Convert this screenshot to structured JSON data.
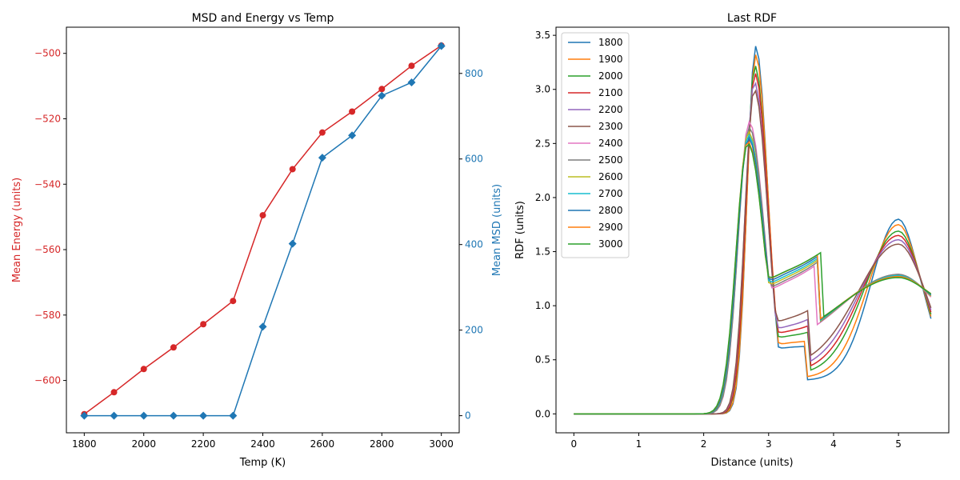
{
  "colors": {
    "energy": "#d62728",
    "msd": "#1f77b4",
    "axis": "#000000"
  },
  "chart_data": [
    {
      "type": "line",
      "title": "MSD and Energy vs Temp",
      "xlabel": "Temp (K)",
      "xlim": [
        1740,
        3060
      ],
      "xticks": [
        1800,
        2000,
        2200,
        2400,
        2600,
        2800,
        3000
      ],
      "x": [
        1800,
        1900,
        2000,
        2100,
        2200,
        2300,
        2400,
        2500,
        2600,
        2700,
        2800,
        2900,
        3000
      ],
      "left_axis": {
        "label": "Mean Energy (units)",
        "ylim": [
          -616,
          -492
        ],
        "ticks": [
          -600,
          -580,
          -560,
          -540,
          -520,
          -500
        ],
        "tick_labels": [
          "−600",
          "−580",
          "−560",
          "−540",
          "−520",
          "−500"
        ]
      },
      "right_axis": {
        "label": "Mean MSD (units)",
        "ylim": [
          -40,
          908
        ],
        "ticks": [
          0,
          200,
          400,
          600,
          800
        ],
        "tick_labels": [
          "0",
          "200",
          "400",
          "600",
          "800"
        ]
      },
      "series": [
        {
          "axis": "left",
          "marker": "circle",
          "color": "#d62728",
          "values": [
            -610.3,
            -603.6,
            -596.5,
            -589.9,
            -582.8,
            -575.7,
            -549.5,
            -535.4,
            -524.2,
            -517.8,
            -510.9,
            -503.8,
            -497.6
          ]
        },
        {
          "axis": "right",
          "marker": "diamond",
          "color": "#1f77b4",
          "values": [
            0,
            0,
            0,
            0,
            0,
            0,
            208,
            402,
            603,
            655,
            748,
            779,
            864
          ]
        }
      ]
    },
    {
      "type": "line",
      "title": "Last RDF",
      "xlabel": "Distance (units)",
      "ylabel": "RDF (units)",
      "xlim": [
        -0.275,
        5.775
      ],
      "ylim": [
        -0.175,
        3.575
      ],
      "xticks": [
        0,
        1,
        2,
        3,
        4,
        5
      ],
      "yticks": [
        0.0,
        0.5,
        1.0,
        1.5,
        2.0,
        2.5,
        3.0,
        3.5
      ],
      "ytick_labels": [
        "0.0",
        "0.5",
        "1.0",
        "1.5",
        "2.0",
        "2.5",
        "3.0",
        "3.5"
      ],
      "legend_position": "top-left",
      "x_range": [
        0,
        5.5
      ],
      "series": [
        {
          "name": "1800",
          "color": "#1f77b4",
          "peak1": 3.4,
          "peak1_x": 2.8,
          "peak1_w": 0.13,
          "valley": 0.31,
          "valley_x": 3.6,
          "peak2": 1.8,
          "end": 0.88
        },
        {
          "name": "1900",
          "color": "#ff7f0e",
          "peak1": 3.32,
          "peak1_x": 2.8,
          "peak1_w": 0.133,
          "valley": 0.33,
          "valley_x": 3.6,
          "peak2": 1.75,
          "end": 0.9
        },
        {
          "name": "2000",
          "color": "#2ca02c",
          "peak1": 3.22,
          "peak1_x": 2.79,
          "peak1_w": 0.137,
          "valley": 0.36,
          "valley_x": 3.61,
          "peak2": 1.69,
          "end": 0.92
        },
        {
          "name": "2100",
          "color": "#d62728",
          "peak1": 3.15,
          "peak1_x": 2.79,
          "peak1_w": 0.14,
          "valley": 0.38,
          "valley_x": 3.62,
          "peak2": 1.65,
          "end": 0.94
        },
        {
          "name": "2200",
          "color": "#9467bd",
          "peak1": 3.07,
          "peak1_x": 2.78,
          "peak1_w": 0.143,
          "valley": 0.4,
          "valley_x": 3.63,
          "peak2": 1.61,
          "end": 0.96
        },
        {
          "name": "2300",
          "color": "#8c564b",
          "peak1": 3.0,
          "peak1_x": 2.78,
          "peak1_w": 0.146,
          "valley": 0.43,
          "valley_x": 3.64,
          "peak2": 1.57,
          "end": 0.98
        },
        {
          "name": "2400",
          "color": "#e377c2",
          "peak1": 2.7,
          "peak1_x": 2.7,
          "peak1_w": 0.168,
          "valley": 0.56,
          "valley_x": 3.75,
          "peak2": 1.29,
          "end": 1.08
        },
        {
          "name": "2500",
          "color": "#7f7f7f",
          "peak1": 2.65,
          "peak1_x": 2.7,
          "peak1_w": 0.17,
          "valley": 0.57,
          "valley_x": 3.76,
          "peak2": 1.29,
          "end": 1.09
        },
        {
          "name": "2600",
          "color": "#bcbd22",
          "peak1": 2.61,
          "peak1_x": 2.69,
          "peak1_w": 0.172,
          "valley": 0.58,
          "valley_x": 3.77,
          "peak2": 1.28,
          "end": 1.09
        },
        {
          "name": "2700",
          "color": "#17becf",
          "peak1": 2.58,
          "peak1_x": 2.69,
          "peak1_w": 0.174,
          "valley": 0.59,
          "valley_x": 3.78,
          "peak2": 1.28,
          "end": 1.1
        },
        {
          "name": "2800",
          "color": "#1f77b4",
          "peak1": 2.55,
          "peak1_x": 2.69,
          "peak1_w": 0.176,
          "valley": 0.6,
          "valley_x": 3.79,
          "peak2": 1.27,
          "end": 1.1
        },
        {
          "name": "2900",
          "color": "#ff7f0e",
          "peak1": 2.52,
          "peak1_x": 2.68,
          "peak1_w": 0.178,
          "valley": 0.61,
          "valley_x": 3.8,
          "peak2": 1.27,
          "end": 1.11
        },
        {
          "name": "3000",
          "color": "#2ca02c",
          "peak1": 2.5,
          "peak1_x": 2.68,
          "peak1_w": 0.18,
          "valley": 0.61,
          "valley_x": 3.81,
          "peak2": 1.26,
          "end": 1.11
        }
      ]
    }
  ]
}
